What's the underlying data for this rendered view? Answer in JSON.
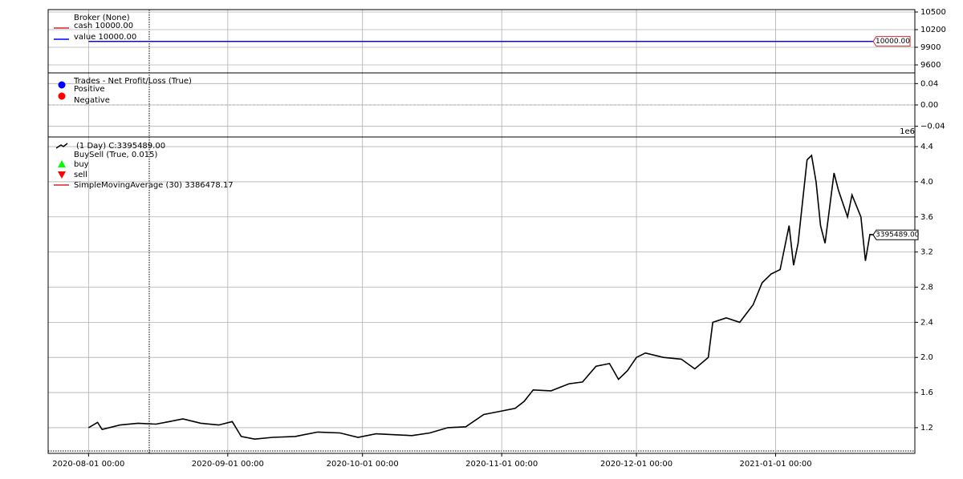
{
  "chart_data": [
    {
      "type": "line",
      "title": "Broker (None)",
      "x": [
        "2020-08-01",
        "2021-01-23"
      ],
      "series": [
        {
          "name": "cash 10000.00",
          "color": "#d62728",
          "values": [
            10000,
            10000
          ]
        },
        {
          "name": "value 10000.00",
          "color": "#0000ff",
          "values": [
            10000,
            10000
          ]
        }
      ],
      "last_value_label": "10000.00",
      "ylim": [
        9464,
        10541
      ],
      "yticks": [
        9600,
        9900,
        10200,
        10500
      ],
      "grid": true
    },
    {
      "type": "scatter",
      "title": "Trades - Net Profit/Loss (True)",
      "series": [
        {
          "name": "Positive",
          "color": "#0000ff",
          "values": []
        },
        {
          "name": "Negative",
          "color": "#ff0000",
          "values": []
        }
      ],
      "ylim": [
        -0.06,
        0.06
      ],
      "yticks": [
        {
          "value": -0.04,
          "label": "−0.04"
        },
        {
          "value": 0,
          "label": "0.00"
        },
        {
          "value": 0.04,
          "label": "0.04"
        }
      ],
      "grid": true
    },
    {
      "type": "line",
      "axis_offset_label": "1e6",
      "x": [
        "2020-08-01",
        "2020-08-03",
        "2020-08-04",
        "2020-08-08",
        "2020-08-12",
        "2020-08-16",
        "2020-08-19",
        "2020-08-22",
        "2020-08-26",
        "2020-08-30",
        "2020-09-02",
        "2020-09-04",
        "2020-09-07",
        "2020-09-11",
        "2020-09-16",
        "2020-09-21",
        "2020-09-26",
        "2020-09-30",
        "2020-10-04",
        "2020-10-08",
        "2020-10-12",
        "2020-10-16",
        "2020-10-20",
        "2020-10-24",
        "2020-10-28",
        "2020-11-01",
        "2020-11-04",
        "2020-11-06",
        "2020-11-08",
        "2020-11-12",
        "2020-11-16",
        "2020-11-19",
        "2020-11-22",
        "2020-11-25",
        "2020-11-27",
        "2020-11-29",
        "2020-12-01",
        "2020-12-03",
        "2020-12-07",
        "2020-12-11",
        "2020-12-14",
        "2020-12-17",
        "2020-12-18",
        "2020-12-21",
        "2020-12-24",
        "2020-12-27",
        "2020-12-29",
        "2020-12-31",
        "2021-01-02",
        "2021-01-04",
        "2021-01-05",
        "2021-01-06",
        "2021-01-08",
        "2021-01-09",
        "2021-01-10",
        "2021-01-11",
        "2021-01-12",
        "2021-01-13",
        "2021-01-14",
        "2021-01-15",
        "2021-01-17",
        "2021-01-18",
        "2021-01-20",
        "2021-01-21",
        "2021-01-22",
        "2021-01-23"
      ],
      "series": [
        {
          "name": "(1 Day) C:3395489.00",
          "color": "#000000",
          "values": [
            1200000,
            1260000,
            1180000,
            1230000,
            1250000,
            1240000,
            1270000,
            1300000,
            1250000,
            1230000,
            1270000,
            1100000,
            1070000,
            1090000,
            1100000,
            1150000,
            1140000,
            1090000,
            1130000,
            1120000,
            1110000,
            1140000,
            1200000,
            1210000,
            1350000,
            1390000,
            1420000,
            1500000,
            1630000,
            1620000,
            1700000,
            1720000,
            1900000,
            1930000,
            1750000,
            1850000,
            2000000,
            2050000,
            2000000,
            1980000,
            1870000,
            2000000,
            2400000,
            2450000,
            2400000,
            2600000,
            2850000,
            2950000,
            3000000,
            3500000,
            3050000,
            3300000,
            4250000,
            4300000,
            4000000,
            3500000,
            3300000,
            3700000,
            4100000,
            3900000,
            3600000,
            3850000,
            3600000,
            3100000,
            3400000,
            3395489
          ]
        }
      ],
      "legend_extra": [
        {
          "name": "BuySell (True, 0.015)"
        },
        {
          "name": "buy",
          "color": "#00ff00",
          "marker": "up"
        },
        {
          "name": "sell",
          "color": "#ff0000",
          "marker": "down"
        },
        {
          "name": "SimpleMovingAverage (30) 3386478.17",
          "color": "#d62728",
          "marker": "line"
        }
      ],
      "last_value_label": "3395489.00",
      "xlim": [
        "2020-07-23",
        "2021-02-01"
      ],
      "xticks": [
        {
          "value": "2020-08-01",
          "label": "2020-08-01 00:00"
        },
        {
          "value": "2020-09-01",
          "label": "2020-09-01 00:00"
        },
        {
          "value": "2020-10-01",
          "label": "2020-10-01 00:00"
        },
        {
          "value": "2020-11-01",
          "label": "2020-11-01 00:00"
        },
        {
          "value": "2020-12-01",
          "label": "2020-12-01 00:00"
        },
        {
          "value": "2021-01-01",
          "label": "2021-01-01 00:00"
        }
      ],
      "ylim": [
        907500,
        4510000
      ],
      "yticks": [
        {
          "value": 1200000,
          "label": "1.2"
        },
        {
          "value": 1600000,
          "label": "1.6"
        },
        {
          "value": 2000000,
          "label": "2.0"
        },
        {
          "value": 2400000,
          "label": "2.4"
        },
        {
          "value": 2800000,
          "label": "2.8"
        },
        {
          "value": 3200000,
          "label": "3.2"
        },
        {
          "value": 3600000,
          "label": "3.6"
        },
        {
          "value": 4000000,
          "label": "4.0"
        },
        {
          "value": 4400000,
          "label": "4.4"
        }
      ],
      "grid": true
    }
  ]
}
